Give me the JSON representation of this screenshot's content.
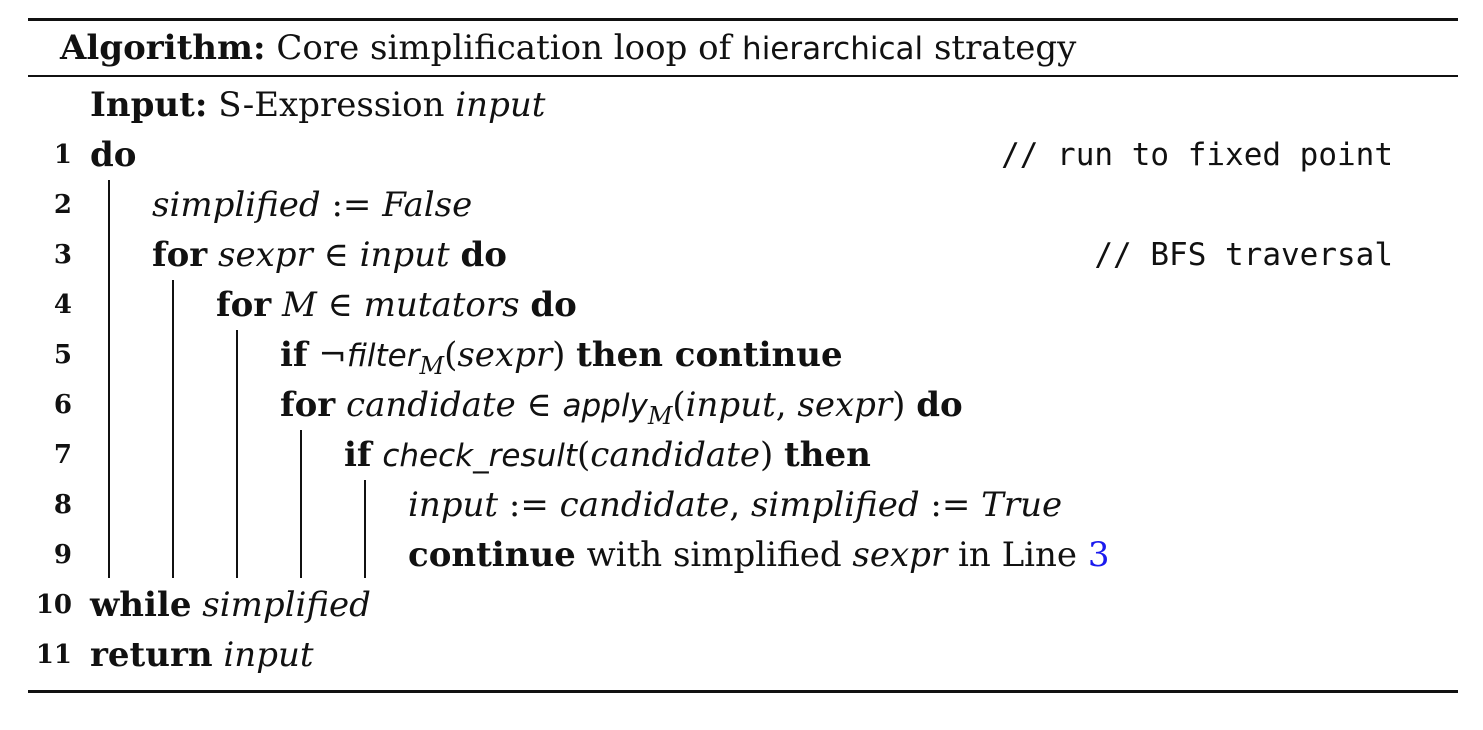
{
  "caption": {
    "label": "Algorithm:",
    "text_1": "Core simplification loop of",
    "name": "hierarchical",
    "text_2": "strategy"
  },
  "input_line": {
    "label": "Input:",
    "text": "S-Expression",
    "var": "input"
  },
  "lines": {
    "l1": {
      "no": "1",
      "kw": "do",
      "comment": "// run to fixed point"
    },
    "l2": {
      "no": "2",
      "v1": "simplified",
      "op": " := ",
      "v2": "False"
    },
    "l3": {
      "no": "3",
      "kw1": "for",
      "v1": "sexpr",
      "op": " ∈ ",
      "v2": "input",
      "kw2": "do",
      "comment": "// BFS traversal"
    },
    "l4": {
      "no": "4",
      "kw1": "for",
      "v1": "M",
      "op": " ∈ ",
      "v2": "mutators",
      "kw2": "do"
    },
    "l5": {
      "no": "5",
      "kw1": "if",
      "neg": "¬",
      "fn": "filter",
      "sub": "M",
      "arg": "sexpr",
      "kw2": "then continue"
    },
    "l6": {
      "no": "6",
      "kw1": "for",
      "v1": "candidate",
      "op": " ∈ ",
      "fn": "apply",
      "sub": "M",
      "arg1": "input",
      "arg2": "sexpr",
      "kw2": "do"
    },
    "l7": {
      "no": "7",
      "kw1": "if",
      "fn": "check_result",
      "arg": "candidate",
      "kw2": "then"
    },
    "l8": {
      "no": "8",
      "v1": "input",
      "op1": " := ",
      "v2": "candidate",
      "v3": "simplified",
      "op2": " := ",
      "v4": "True"
    },
    "l9": {
      "no": "9",
      "kw": "continue",
      "t1": "with simplified",
      "v": "sexpr",
      "t2": "in Line",
      "ref": "3"
    },
    "l10": {
      "no": "10",
      "kw": "while",
      "v": "simplified"
    },
    "l11": {
      "no": "11",
      "kw": "return",
      "v": "input"
    }
  }
}
